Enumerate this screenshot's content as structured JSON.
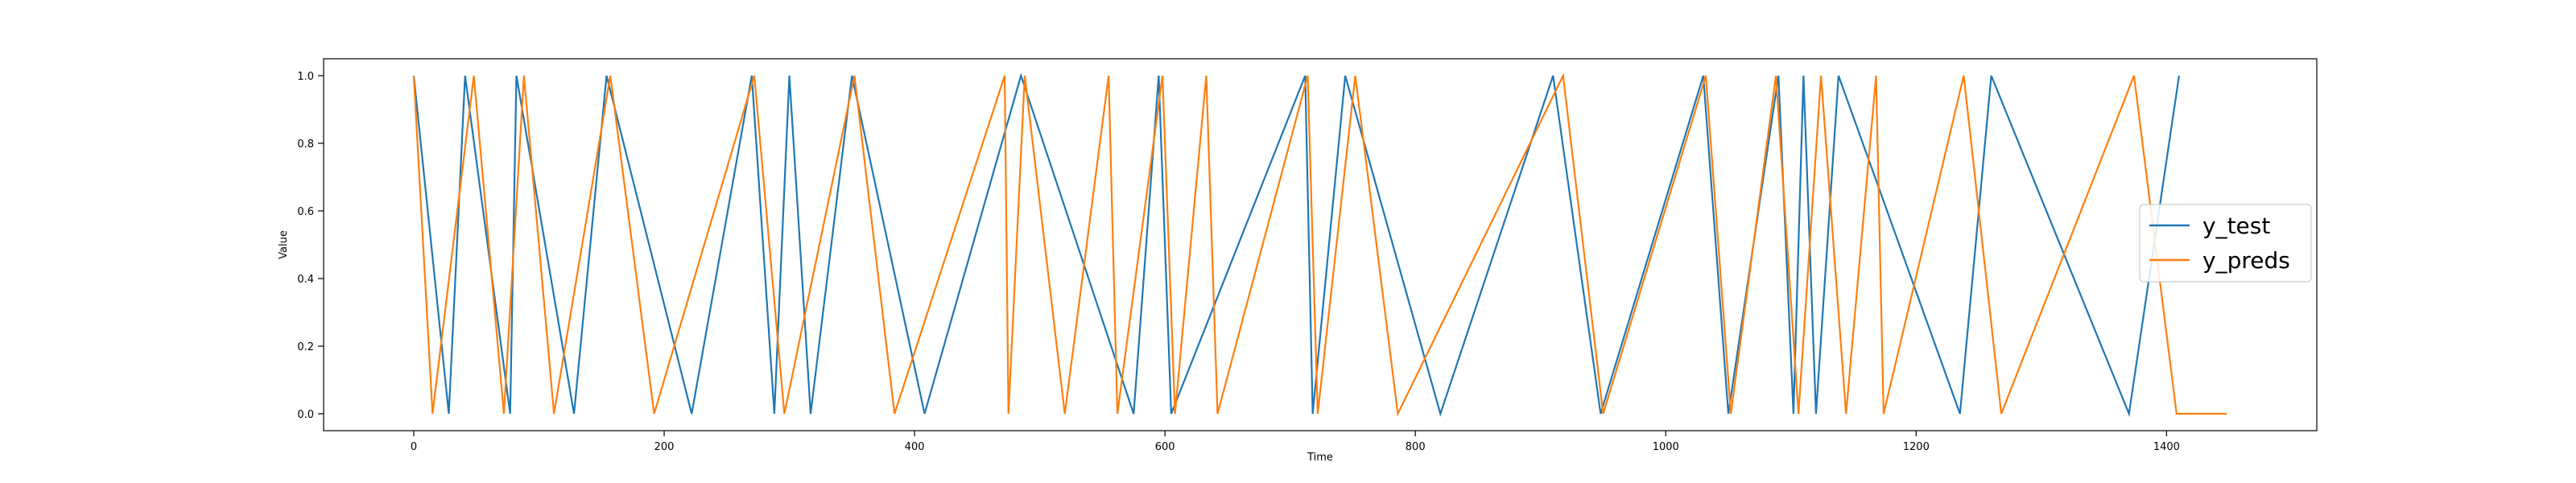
{
  "chart_data": {
    "type": "line",
    "title": "",
    "xlabel": "Time",
    "ylabel": "Value",
    "xlim": [
      -72,
      1520
    ],
    "ylim": [
      -0.05,
      1.05
    ],
    "x_ticks": [
      0,
      200,
      400,
      600,
      800,
      1000,
      1200,
      1400
    ],
    "y_ticks": [
      0.0,
      0.2,
      0.4,
      0.6,
      0.8,
      1.0
    ],
    "x_tick_labels": [
      "0",
      "200",
      "400",
      "600",
      "800",
      "1000",
      "1200",
      "1400"
    ],
    "y_tick_labels": [
      "0.0",
      "0.2",
      "0.4",
      "0.6",
      "0.8",
      "1.0"
    ],
    "grid": false,
    "legend_position": "center-right",
    "series": [
      {
        "name": "y_test",
        "color": "#1f77b4",
        "start_value": 1,
        "end": 1410,
        "transitions": [
          28,
          41,
          77,
          82,
          128,
          154,
          222,
          270,
          288,
          300,
          317,
          350,
          408,
          485,
          575,
          595,
          605,
          712,
          718,
          744,
          820,
          910,
          948,
          1030,
          1050,
          1090,
          1102,
          1110,
          1120,
          1138,
          1235,
          1260,
          1370,
          1410
        ]
      },
      {
        "name": "y_preds",
        "color": "#ff7f0e",
        "start_value": 1,
        "end": 1448,
        "transitions": [
          15,
          48,
          72,
          88,
          112,
          157,
          192,
          272,
          296,
          352,
          384,
          472,
          475,
          488,
          520,
          555,
          562,
          598,
          608,
          633,
          642,
          714,
          722,
          752,
          786,
          918,
          950,
          1032,
          1052,
          1088,
          1106,
          1124,
          1144,
          1168,
          1174,
          1238,
          1268,
          1374,
          1408
        ]
      }
    ]
  }
}
